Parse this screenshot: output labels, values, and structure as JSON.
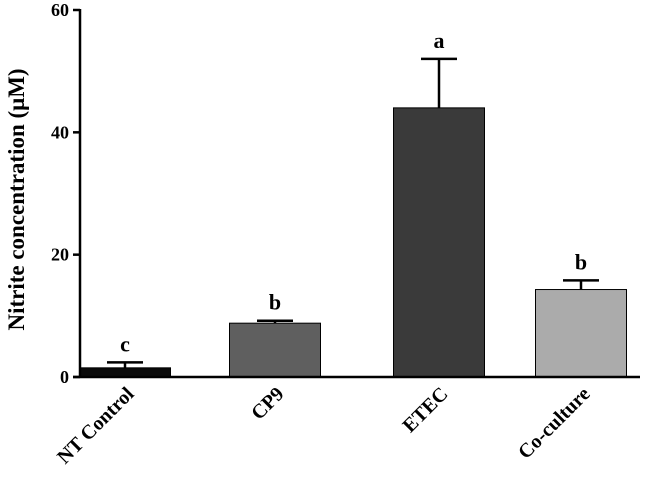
{
  "chart_data": {
    "type": "bar",
    "categories": [
      "NT Control",
      "CP9",
      "ETEC",
      "Co-culture"
    ],
    "values": [
      1.5,
      8.8,
      44.0,
      14.3
    ],
    "errors": [
      0.9,
      0.4,
      8.0,
      1.5
    ],
    "significance_letters": [
      "c",
      "b",
      "a",
      "b"
    ],
    "bar_colors": [
      "#0a0a0a",
      "#5f5f5f",
      "#3a3a3a",
      "#ababab"
    ],
    "title": "",
    "xlabel": "",
    "ylabel": "Nitrite concentration (μM)",
    "ylim": [
      0,
      60
    ],
    "yticks": [
      0,
      20,
      40,
      60
    ],
    "ytick_labels": [
      "0",
      "20",
      "40",
      "60"
    ],
    "grid": false,
    "legend": "none"
  }
}
